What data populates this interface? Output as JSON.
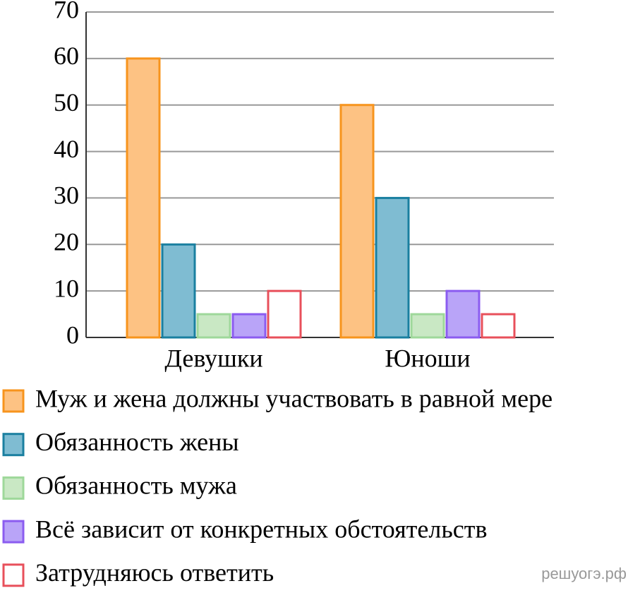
{
  "chart_data": {
    "type": "bar",
    "categories": [
      "Девушки",
      "Юноши"
    ],
    "series": [
      {
        "name": "Муж и жена должны участвовать в равной мере",
        "color": "#fdc283",
        "edgecolor": "#f7941d",
        "values": [
          60,
          50
        ]
      },
      {
        "name": "Обязанность жены",
        "color": "#7fbcd2",
        "edgecolor": "#1a7fa0",
        "values": [
          20,
          30
        ]
      },
      {
        "name": "Обязанность мужа",
        "color": "#c9e8c4",
        "edgecolor": "#9ed89a",
        "values": [
          5,
          5
        ]
      },
      {
        "name": "Всё зависит от конкретных обстоятельств",
        "color": "#b9a4f8",
        "edgecolor": "#8b5cf0",
        "values": [
          5,
          10
        ]
      },
      {
        "name": "Затрудняюсь ответить",
        "color": "#ffffff",
        "edgecolor": "#e8505b",
        "values": [
          10,
          5
        ]
      }
    ],
    "ylim": [
      0,
      70
    ],
    "yticks": [
      0,
      10,
      20,
      30,
      40,
      50,
      60,
      70
    ],
    "grid": true,
    "watermark": "решуогэ.рф"
  }
}
